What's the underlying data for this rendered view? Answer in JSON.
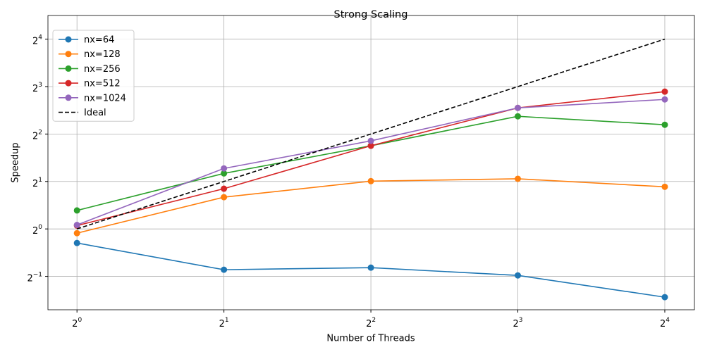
{
  "chart_data": {
    "type": "line",
    "title": "Strong Scaling",
    "x_label": "Number of Threads",
    "y_label": "Speedup",
    "x": [
      1,
      2,
      4,
      8,
      16
    ],
    "xscale": "log2",
    "yscale": "log2",
    "xlim": [
      0.872,
      18.4
    ],
    "ylim": [
      0.307,
      22.6
    ],
    "xticks": [
      {
        "value": 1,
        "label": "2^0"
      },
      {
        "value": 2,
        "label": "2^1"
      },
      {
        "value": 4,
        "label": "2^2"
      },
      {
        "value": 8,
        "label": "2^3"
      },
      {
        "value": 16,
        "label": "2^4"
      }
    ],
    "yticks": [
      {
        "value": 0.5,
        "label": "2^−1"
      },
      {
        "value": 1,
        "label": "2^0"
      },
      {
        "value": 2,
        "label": "2^1"
      },
      {
        "value": 4,
        "label": "2^2"
      },
      {
        "value": 8,
        "label": "2^3"
      },
      {
        "value": 16,
        "label": "2^4"
      }
    ],
    "grid": true,
    "legend": "upper left",
    "series": [
      {
        "name": "nx=64",
        "color": "#1f77b4",
        "values": [
          0.814,
          0.551,
          0.568,
          0.507,
          0.369
        ],
        "marker": true
      },
      {
        "name": "nx=128",
        "color": "#ff7f0e",
        "values": [
          0.94,
          1.59,
          2.01,
          2.08,
          1.85
        ],
        "marker": true
      },
      {
        "name": "nx=256",
        "color": "#2ca02c",
        "values": [
          1.31,
          2.25,
          3.37,
          5.18,
          4.58
        ],
        "marker": true
      },
      {
        "name": "nx=512",
        "color": "#d62728",
        "values": [
          1.05,
          1.8,
          3.37,
          5.86,
          7.43
        ],
        "marker": true
      },
      {
        "name": "nx=1024",
        "color": "#9467bd",
        "values": [
          1.06,
          2.42,
          3.62,
          5.86,
          6.63
        ],
        "marker": true
      },
      {
        "name": "Ideal",
        "color": "#000000",
        "values": [
          1,
          2,
          4,
          8,
          16
        ],
        "marker": false,
        "linestyle": "dashed"
      }
    ]
  }
}
